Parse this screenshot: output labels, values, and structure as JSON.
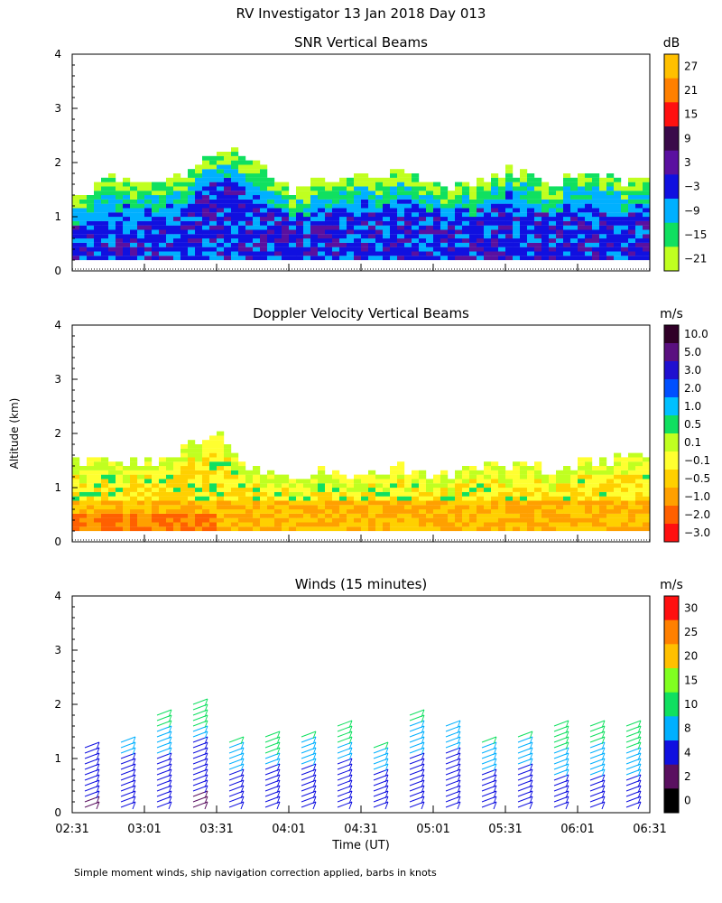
{
  "chart_data": {
    "type": "heatmap",
    "title": "RV Investigator  13 Jan 2018 Day 013",
    "ylabel": "Altitude (km)",
    "xlabel": "Time (UT)",
    "x_ticks": [
      "02:31",
      "03:01",
      "03:31",
      "04:01",
      "04:31",
      "05:01",
      "05:31",
      "06:01",
      "06:31"
    ],
    "y_ticks": [
      "0",
      "1",
      "2",
      "3",
      "4"
    ],
    "ylim": [
      0,
      4
    ],
    "footnote": "Simple moment winds, ship navigation correction applied, barbs in knots",
    "panels": [
      {
        "title": "SNR Vertical Beams",
        "unit": "dB",
        "colorbar": {
          "labels": [
            "27",
            "21",
            "15",
            "9",
            "3",
            "−3",
            "−9",
            "−15",
            "−21"
          ],
          "colors": [
            "#ffc000",
            "#ff8000",
            "#ff1010",
            "#3a0a4a",
            "#5a10a0",
            "#1010e0",
            "#00b0ff",
            "#10e060",
            "#c0ff20"
          ]
        },
        "profile": [
          {
            "t": 0,
            "top": 1.3,
            "core": 0.8
          },
          {
            "t": 15,
            "top": 1.7,
            "core": 0.8
          },
          {
            "t": 30,
            "top": 1.6,
            "core": 0.9
          },
          {
            "t": 45,
            "top": 1.7,
            "core": 1.0
          },
          {
            "t": 60,
            "top": 2.3,
            "core": 1.9
          },
          {
            "t": 75,
            "top": 1.9,
            "core": 1.2
          },
          {
            "t": 90,
            "top": 1.5,
            "core": 1.0
          },
          {
            "t": 105,
            "top": 1.7,
            "core": 1.1
          },
          {
            "t": 120,
            "top": 1.8,
            "core": 1.0
          },
          {
            "t": 135,
            "top": 1.7,
            "core": 1.1
          },
          {
            "t": 150,
            "top": 1.6,
            "core": 1.3
          },
          {
            "t": 165,
            "top": 1.5,
            "core": 1.1
          },
          {
            "t": 180,
            "top": 1.8,
            "core": 1.2
          },
          {
            "t": 195,
            "top": 1.6,
            "core": 1.0
          },
          {
            "t": 210,
            "top": 1.7,
            "core": 1.1
          },
          {
            "t": 225,
            "top": 1.6,
            "core": 1.0
          },
          {
            "t": 240,
            "top": 1.7,
            "core": 1.1
          }
        ]
      },
      {
        "title": "Doppler Velocity Vertical Beams",
        "unit": "m/s",
        "colorbar": {
          "labels": [
            "10.0",
            "5.0",
            "3.0",
            "2.0",
            "1.0",
            "0.5",
            "0.1",
            "−0.1",
            "−0.5",
            "−1.0",
            "−2.0",
            "−3.0"
          ],
          "colors": [
            "#300028",
            "#5a1080",
            "#2010d0",
            "#0050ff",
            "#00c0ff",
            "#10e060",
            "#c0ff20",
            "#ffff30",
            "#ffd000",
            "#ffa000",
            "#ff6000",
            "#ff1010"
          ]
        },
        "profile": [
          {
            "t": 0,
            "top": 1.4
          },
          {
            "t": 15,
            "top": 1.5
          },
          {
            "t": 30,
            "top": 1.4
          },
          {
            "t": 45,
            "top": 1.7
          },
          {
            "t": 60,
            "top": 1.9
          },
          {
            "t": 75,
            "top": 1.3
          },
          {
            "t": 90,
            "top": 1.2
          },
          {
            "t": 105,
            "top": 1.3
          },
          {
            "t": 120,
            "top": 1.2
          },
          {
            "t": 135,
            "top": 1.3
          },
          {
            "t": 150,
            "top": 1.2
          },
          {
            "t": 165,
            "top": 1.3
          },
          {
            "t": 180,
            "top": 1.4
          },
          {
            "t": 195,
            "top": 1.3
          },
          {
            "t": 210,
            "top": 1.4
          },
          {
            "t": 225,
            "top": 1.5
          },
          {
            "t": 240,
            "top": 1.6
          }
        ]
      },
      {
        "title": "Winds (15 minutes)",
        "unit": "m/s",
        "colorbar": {
          "labels": [
            "30",
            "25",
            "20",
            "15",
            "10",
            "8",
            "4",
            "2",
            "0"
          ],
          "colors": [
            "#ff1010",
            "#ff8000",
            "#ffc000",
            "#80ff20",
            "#10e060",
            "#00b0ff",
            "#1010e0",
            "#5a1060",
            "#000000"
          ]
        },
        "barb_columns": [
          {
            "t": 7.5,
            "top": 1.3,
            "speeds": [
              3,
              4,
              5,
              6,
              6,
              7,
              7,
              8
            ]
          },
          {
            "t": 22.5,
            "top": 1.4,
            "speeds": [
              4,
              5,
              6,
              7,
              8,
              9
            ]
          },
          {
            "t": 37.5,
            "top": 1.9,
            "speeds": [
              4,
              5,
              6,
              7,
              8,
              9,
              10,
              12
            ]
          },
          {
            "t": 52.5,
            "top": 2.0,
            "speeds": [
              3,
              4,
              5,
              6,
              7,
              9,
              12,
              14
            ]
          },
          {
            "t": 67.5,
            "top": 1.4,
            "speeds": [
              5,
              6,
              7,
              8,
              9,
              11
            ]
          },
          {
            "t": 82.5,
            "top": 1.5,
            "speeds": [
              5,
              6,
              7,
              8,
              10,
              12
            ]
          },
          {
            "t": 97.5,
            "top": 1.5,
            "speeds": [
              4,
              6,
              7,
              8,
              9,
              10
            ]
          },
          {
            "t": 112.5,
            "top": 1.7,
            "speeds": [
              5,
              6,
              7,
              9,
              10,
              11
            ]
          },
          {
            "t": 127.5,
            "top": 1.3,
            "speeds": [
              5,
              6,
              7,
              8,
              9,
              10
            ]
          },
          {
            "t": 142.5,
            "top": 1.9,
            "speeds": [
              5,
              6,
              7,
              8,
              9,
              10
            ]
          },
          {
            "t": 157.5,
            "top": 1.6,
            "speeds": [
              4,
              5,
              6,
              7,
              8,
              9
            ]
          },
          {
            "t": 172.5,
            "top": 1.4,
            "speeds": [
              5,
              6,
              7,
              8,
              9,
              10
            ]
          },
          {
            "t": 187.5,
            "top": 1.5,
            "speeds": [
              5,
              6,
              7,
              8,
              9,
              10
            ]
          },
          {
            "t": 202.5,
            "top": 1.6,
            "speeds": [
              6,
              7,
              8,
              9,
              10,
              11
            ]
          },
          {
            "t": 217.5,
            "top": 1.7,
            "speeds": [
              6,
              7,
              8,
              9,
              10,
              11
            ]
          },
          {
            "t": 232.5,
            "top": 1.6,
            "speeds": [
              6,
              7,
              8,
              9,
              10,
              10
            ]
          }
        ]
      }
    ]
  }
}
